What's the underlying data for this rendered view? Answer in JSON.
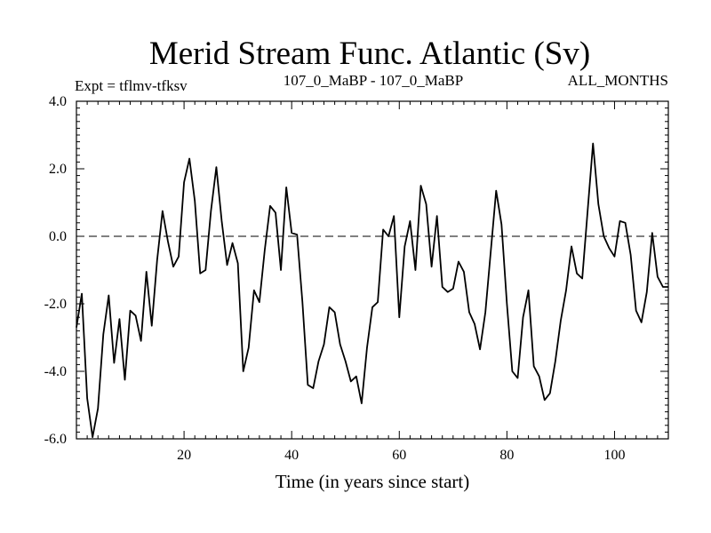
{
  "chart_data": {
    "type": "line",
    "title": "Merid Stream Func. Atlantic (Sv)",
    "subtitle_left": "Expt = tflmv-tfksv",
    "subtitle_center": "107_0_MaBP - 107_0_MaBP",
    "subtitle_right": "ALL_MONTHS",
    "xlabel": "Time (in years since start)",
    "ylabel": "",
    "xlim": [
      0,
      110
    ],
    "ylim": [
      -6.0,
      4.0
    ],
    "x_ticks": [
      20,
      40,
      60,
      80,
      100
    ],
    "y_ticks": [
      4.0,
      2.0,
      0.0,
      -2.0,
      -4.0,
      -6.0
    ],
    "y_tick_labels": [
      "4.0",
      "2.0",
      "0.0",
      "-2.0",
      "-4.0",
      "-6.0"
    ],
    "reference_line": {
      "y": 0.0,
      "style": "dashed"
    },
    "series": [
      {
        "name": "tflmv-tfksv",
        "color": "#000000",
        "x": [
          0,
          1,
          2,
          3,
          4,
          5,
          6,
          7,
          8,
          9,
          10,
          11,
          12,
          13,
          14,
          15,
          16,
          17,
          18,
          19,
          20,
          21,
          22,
          23,
          24,
          25,
          26,
          27,
          28,
          29,
          30,
          31,
          32,
          33,
          34,
          35,
          36,
          37,
          38,
          39,
          40,
          41,
          42,
          43,
          44,
          45,
          46,
          47,
          48,
          49,
          50,
          51,
          52,
          53,
          54,
          55,
          56,
          57,
          58,
          59,
          60,
          61,
          62,
          63,
          64,
          65,
          66,
          67,
          68,
          69,
          70,
          71,
          72,
          73,
          74,
          75,
          76,
          77,
          78,
          79,
          80,
          81,
          82,
          83,
          84,
          85,
          86,
          87,
          88,
          89,
          90,
          91,
          92,
          93,
          94,
          95,
          96,
          97,
          98,
          99,
          100,
          101,
          102,
          103,
          104,
          105,
          106,
          107,
          108,
          109,
          110
        ],
        "values": [
          -2.7,
          -1.7,
          -4.8,
          -5.95,
          -5.1,
          -2.9,
          -1.75,
          -3.75,
          -2.45,
          -4.25,
          -2.2,
          -2.35,
          -3.1,
          -1.05,
          -2.65,
          -0.7,
          0.75,
          -0.15,
          -0.9,
          -0.6,
          1.6,
          2.3,
          1.05,
          -1.1,
          -1.0,
          0.75,
          2.05,
          0.45,
          -0.85,
          -0.2,
          -0.8,
          -4.0,
          -3.3,
          -1.6,
          -1.95,
          -0.4,
          0.9,
          0.7,
          -1.0,
          1.45,
          0.1,
          0.05,
          -1.95,
          -4.4,
          -4.5,
          -3.7,
          -3.2,
          -2.1,
          -2.25,
          -3.2,
          -3.7,
          -4.3,
          -4.15,
          -4.95,
          -3.3,
          -2.1,
          -1.95,
          0.2,
          0.0,
          0.6,
          -2.4,
          -0.3,
          0.45,
          -1.0,
          1.5,
          0.95,
          -0.9,
          0.6,
          -1.5,
          -1.65,
          -1.55,
          -0.75,
          -1.05,
          -2.25,
          -2.6,
          -3.35,
          -2.25,
          -0.45,
          1.35,
          0.35,
          -2.0,
          -4.0,
          -4.2,
          -2.4,
          -1.6,
          -3.85,
          -4.15,
          -4.85,
          -4.65,
          -3.7,
          -2.5,
          -1.6,
          -0.3,
          -1.1,
          -1.25,
          0.75,
          2.75,
          0.95,
          0.0,
          -0.35,
          -0.6,
          0.45,
          0.4,
          -0.55,
          -2.2,
          -2.55,
          -1.65,
          0.1,
          -1.2,
          -1.5,
          -1.5
        ]
      }
    ]
  }
}
